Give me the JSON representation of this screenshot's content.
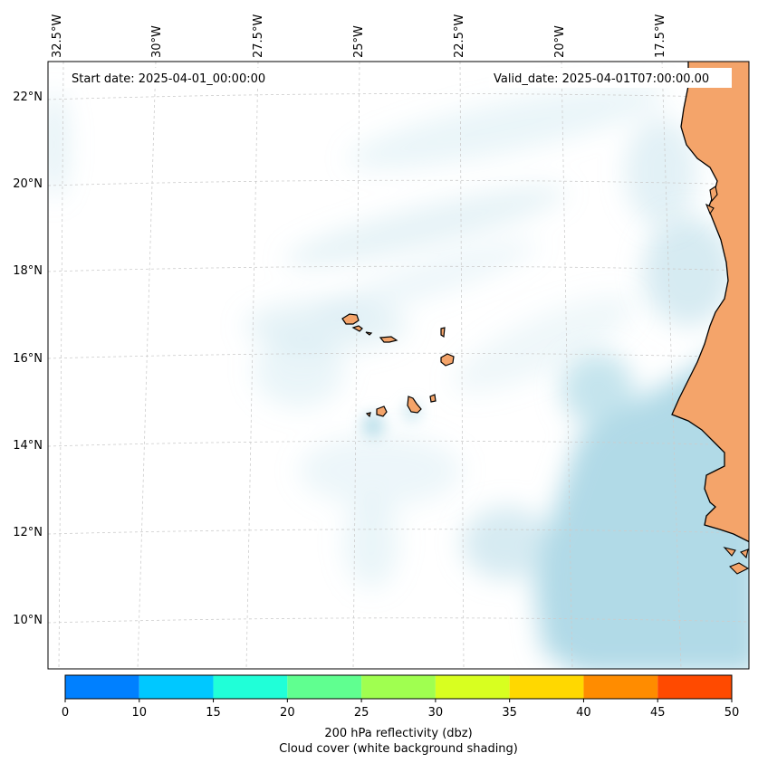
{
  "map": {
    "start_label": "Start date: 2025-04-01_00:00:00",
    "valid_label": "Valid_date: 2025-04-01T07:00:00.00",
    "lon_labels": [
      "32.5°W",
      "30°W",
      "27.5°W",
      "25°W",
      "22.5°W",
      "20°W",
      "17.5°W"
    ],
    "lat_labels": [
      "22°N",
      "20°N",
      "18°N",
      "16°N",
      "14°N",
      "12°N",
      "10°N"
    ],
    "colors": {
      "land": "#f4a46a",
      "land_dark": "#f0985a",
      "cloud": "#add8e6",
      "coast": "#000000",
      "grid": "#cccccc"
    }
  },
  "colorbar": {
    "ticks": [
      "0",
      "10",
      "15",
      "20",
      "25",
      "30",
      "35",
      "40",
      "45",
      "50"
    ],
    "colors": [
      "#0080ff",
      "#00c8ff",
      "#20ffd8",
      "#60ff90",
      "#a0ff50",
      "#d8ff20",
      "#ffd800",
      "#ff8c00",
      "#ff4a00"
    ],
    "label_line1": "200 hPa reflectivity (dbz)",
    "label_line2": "Cloud cover (white background shading)"
  }
}
